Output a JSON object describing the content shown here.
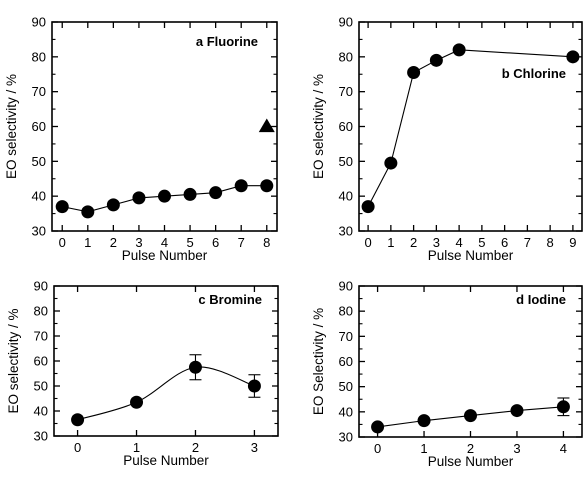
{
  "chart_data": [
    {
      "type": "scatter",
      "title": "a Fluorine",
      "xlabel": "Pulse Number",
      "ylabel": "EO selectivity / %",
      "xlim": [
        -0.4,
        8.4
      ],
      "ylim": [
        30,
        90
      ],
      "xticks": [
        "0",
        "1",
        "2",
        "3",
        "4",
        "5",
        "6",
        "7",
        "8"
      ],
      "yticks": [
        "30",
        "40",
        "50",
        "60",
        "70",
        "80",
        "90"
      ],
      "series": [
        {
          "marker": "circle",
          "line": "straight",
          "x": [
            0,
            1,
            2,
            3,
            4,
            5,
            6,
            7,
            8
          ],
          "y": [
            37,
            35.5,
            37.5,
            39.5,
            40,
            40.5,
            41,
            43,
            43
          ]
        },
        {
          "marker": "triangle",
          "line": "none",
          "x": [
            8
          ],
          "y": [
            60
          ]
        }
      ]
    },
    {
      "type": "scatter",
      "title": "b Chlorine",
      "xlabel": "Pulse Number",
      "ylabel": "EO selectivity / %",
      "xlim": [
        -0.4,
        9.4
      ],
      "ylim": [
        30,
        90
      ],
      "xticks": [
        "0",
        "1",
        "2",
        "3",
        "4",
        "5",
        "6",
        "7",
        "8",
        "9"
      ],
      "yticks": [
        "30",
        "40",
        "50",
        "60",
        "70",
        "80",
        "90"
      ],
      "series": [
        {
          "marker": "circle",
          "line": "straight",
          "x": [
            0,
            1,
            2,
            3,
            4,
            9
          ],
          "y": [
            37,
            49.5,
            75.5,
            79,
            82,
            80
          ]
        }
      ]
    },
    {
      "type": "scatter",
      "title": "c Bromine",
      "xlabel": "Pulse Number",
      "ylabel": "EO selectivity / %",
      "xlim": [
        -0.4,
        3.4
      ],
      "ylim": [
        30,
        90
      ],
      "xticks": [
        "0",
        "1",
        "2",
        "3"
      ],
      "yticks": [
        "30",
        "40",
        "50",
        "60",
        "70",
        "80",
        "90"
      ],
      "series": [
        {
          "marker": "circle",
          "line": "smooth",
          "x": [
            0,
            1,
            2,
            3
          ],
          "y": [
            36.5,
            43.5,
            57.5,
            50
          ],
          "yerr": [
            0,
            0,
            5,
            4.5
          ]
        }
      ]
    },
    {
      "type": "scatter",
      "title": "d Iodine",
      "xlabel": "Pulse Number",
      "ylabel": "EO Selectivity / %",
      "xlim": [
        -0.4,
        4.4
      ],
      "ylim": [
        30,
        90
      ],
      "xticks": [
        "0",
        "1",
        "2",
        "3",
        "4"
      ],
      "yticks": [
        "30",
        "40",
        "50",
        "60",
        "70",
        "80",
        "90"
      ],
      "series": [
        {
          "marker": "circle",
          "line": "straight",
          "x": [
            0,
            1,
            2,
            3,
            4
          ],
          "y": [
            34,
            36.5,
            38.5,
            40.5,
            42
          ],
          "yerr": [
            0,
            0,
            0,
            0,
            3.5
          ]
        }
      ]
    }
  ]
}
